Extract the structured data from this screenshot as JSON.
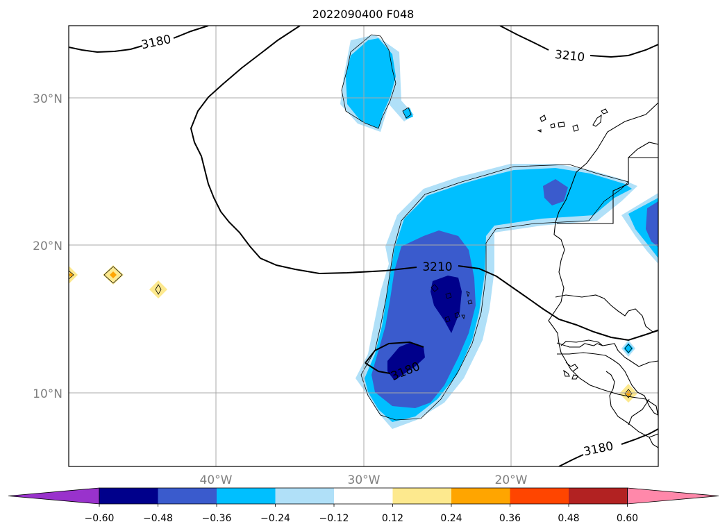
{
  "title": "2022090400 F048",
  "lon_ticks": [
    "40°W",
    "30°W",
    "20°W"
  ],
  "lat_ticks": [
    "30°N",
    "20°N",
    "10°N"
  ],
  "contour_labels": [
    "3180",
    "3210",
    "3210",
    "3180",
    "3180"
  ],
  "colorbar": {
    "ticks": [
      "−0.60",
      "−0.48",
      "−0.36",
      "−0.24",
      "−0.12",
      "0.12",
      "0.24",
      "0.36",
      "0.48",
      "0.60"
    ],
    "colors": [
      "#9932cc",
      "#00008b",
      "#3a5bcd",
      "#00bfff",
      "#b0e0f8",
      "#ffffff",
      "#fde98e",
      "#ffa500",
      "#ff4500",
      "#b22222",
      "#ff88aa"
    ]
  },
  "fill_colors": {
    "light_blue": "#b0e0f8",
    "cyan": "#00bfff",
    "royal_blue": "#3a5bcd",
    "navy": "#00008b",
    "yellow": "#fde98e",
    "orange": "#ffa500"
  }
}
